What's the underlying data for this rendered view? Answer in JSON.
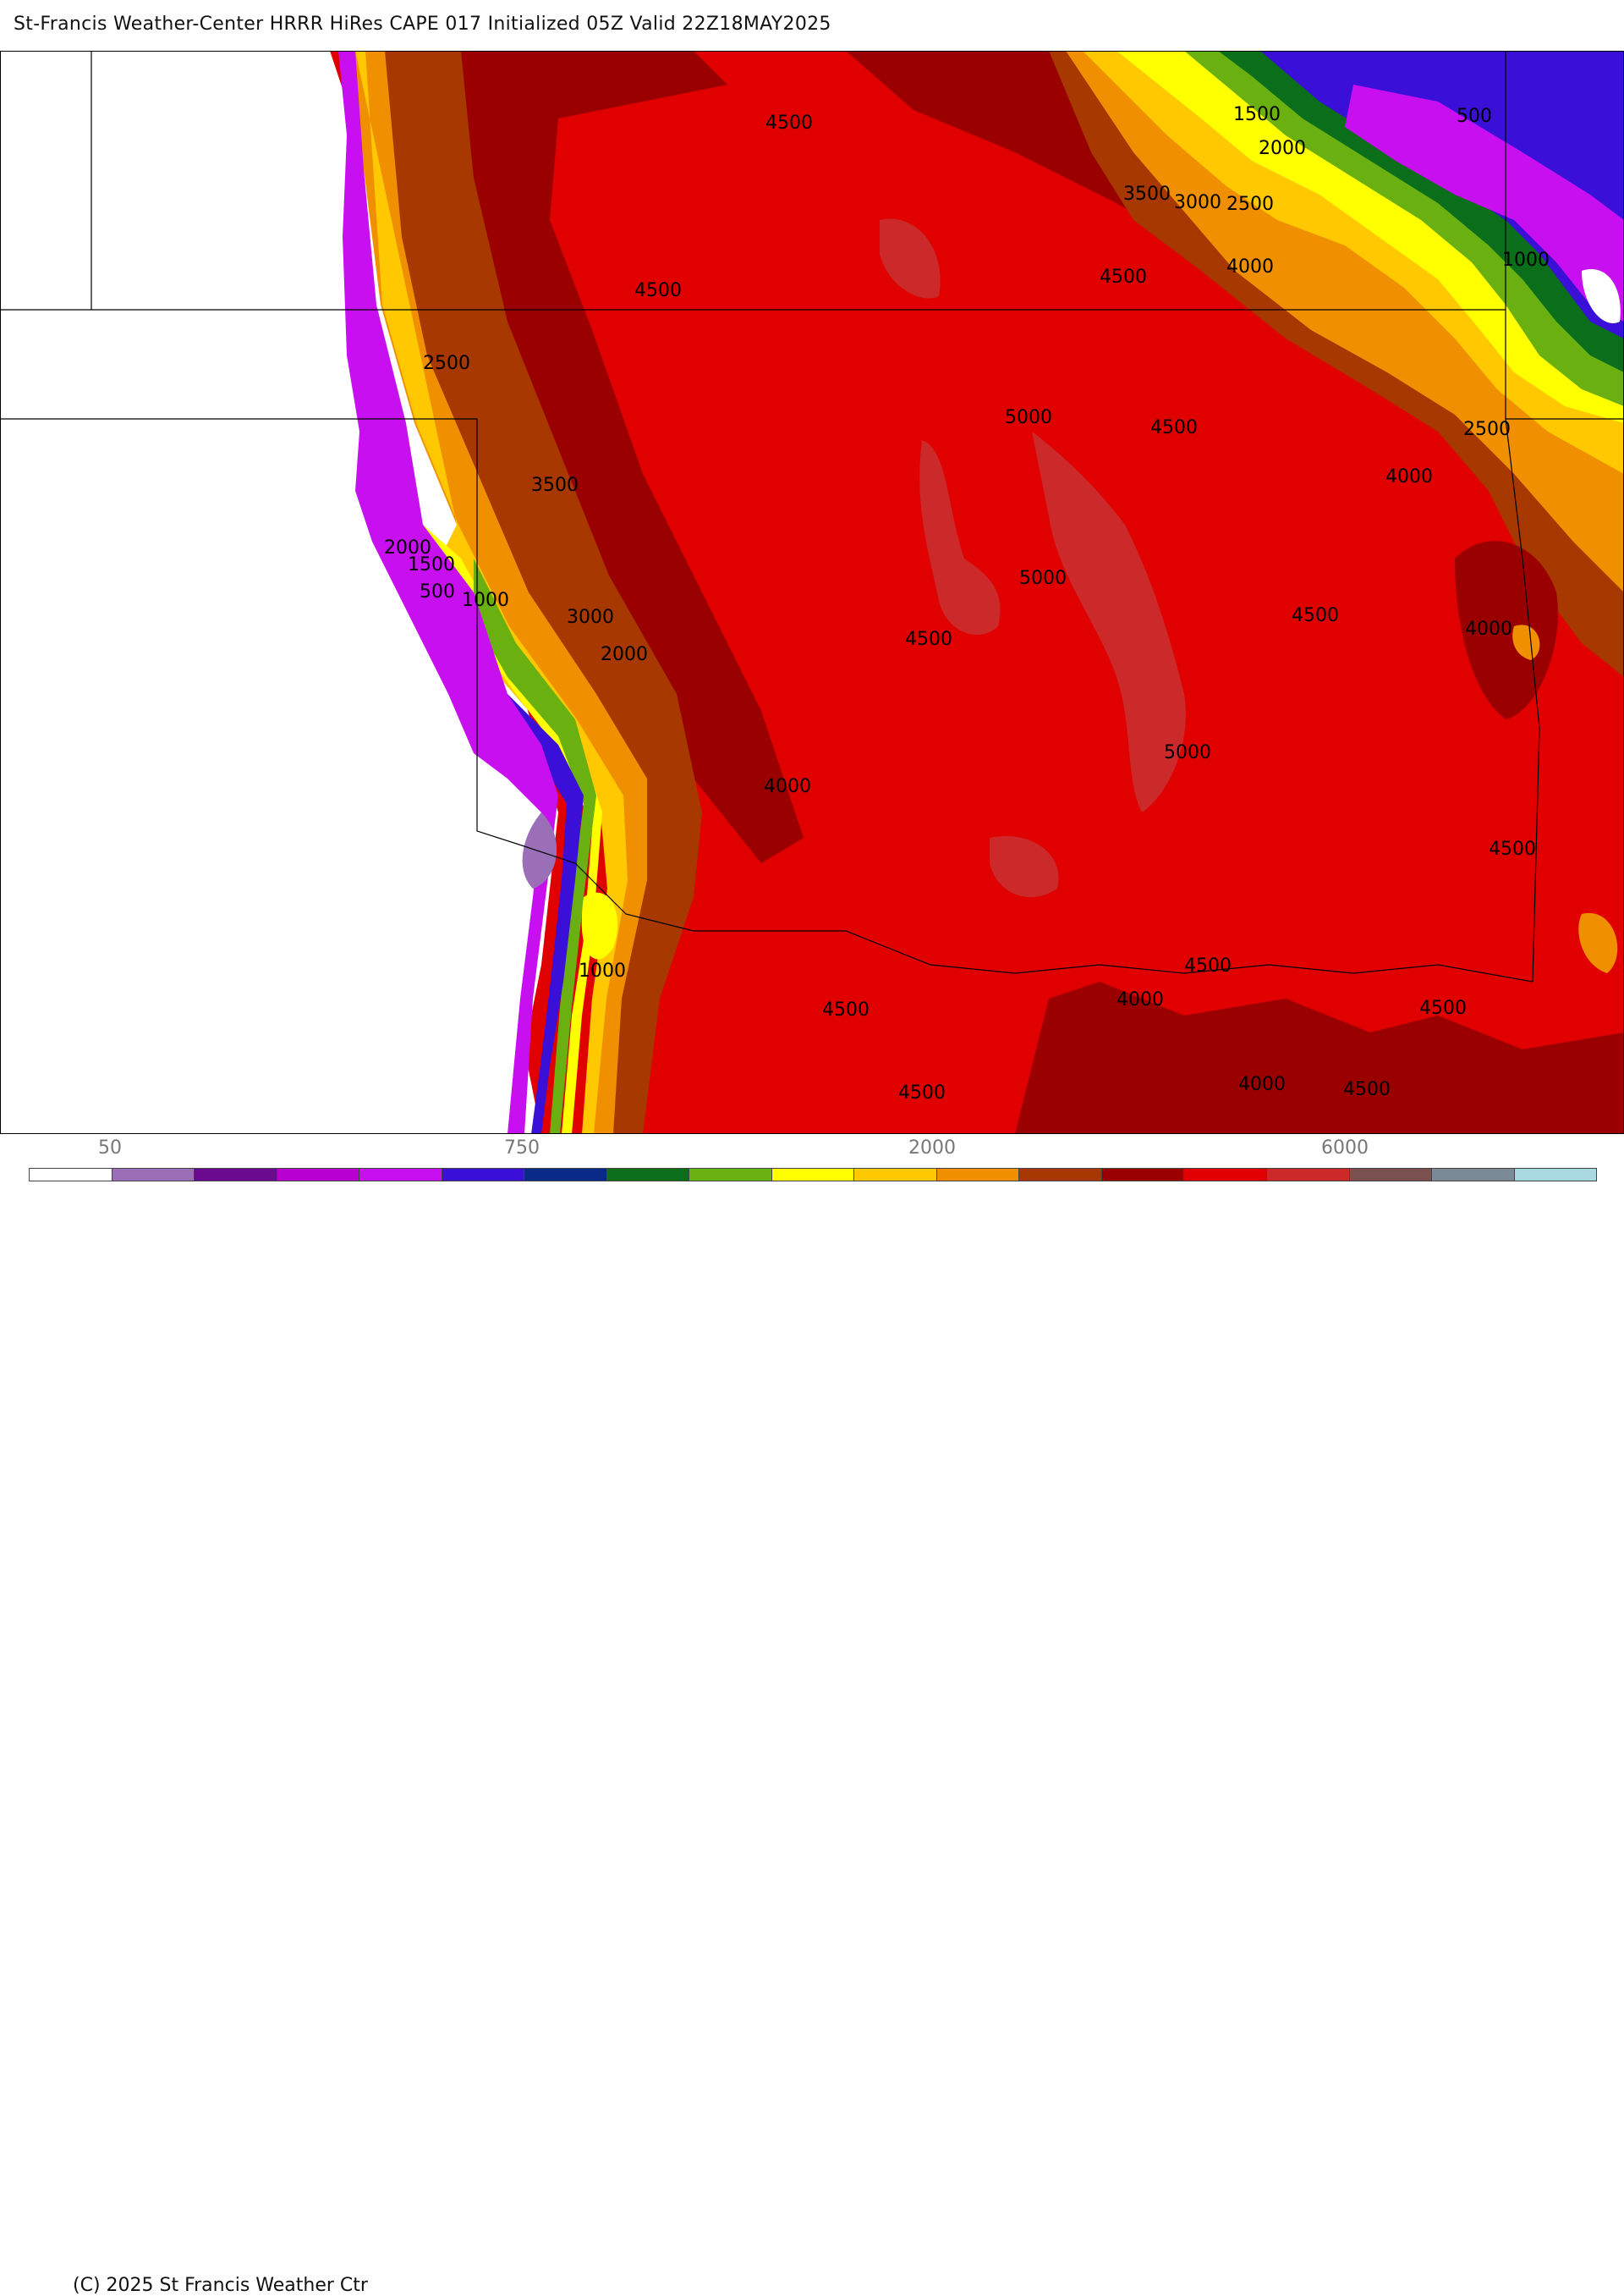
{
  "title": "St-Francis Weather-Center HRRR HiRes CAPE  017 Initialized  05Z Valid 22Z18MAY2025",
  "copyright": "(C) 2025 St Francis Weather Ctr",
  "colorbar": {
    "tick_labels": [
      "50",
      "750",
      "2000",
      "6000"
    ],
    "colors": [
      "#ffffff",
      "#9b6fb8",
      "#6a0a8e",
      "#b800d0",
      "#c80ff0",
      "#3a10d8",
      "#0a2a8a",
      "#0a6e1a",
      "#6ab010",
      "#ffff00",
      "#ffc800",
      "#f09000",
      "#a63800",
      "#9a0000",
      "#e00000",
      "#cc2a2a",
      "#7a5050",
      "#7a8a96",
      "#a8d8e0"
    ]
  },
  "contour_labels": {
    "l1": "4500",
    "l2": "4500",
    "l3": "1500",
    "l4": "500",
    "l5": "2000",
    "l6": "3500",
    "l7": "3000",
    "l8": "2500",
    "l9": "4000",
    "l10": "4500",
    "l11": "1000",
    "l12": "2500",
    "l13": "5000",
    "l14": "4500",
    "l15": "2500",
    "l16": "4000",
    "l17": "3500",
    "l18": "2000",
    "l19": "1500",
    "l20": "500",
    "l21": "1000",
    "l22": "3000",
    "l23": "2000",
    "l24": "5000",
    "l25": "4500",
    "l26": "4500",
    "l27": "4000",
    "l28": "5000",
    "l29": "4000",
    "l30": "4500",
    "l31": "1000",
    "l32": "4500",
    "l33": "4500",
    "l34": "4000",
    "l35": "4500",
    "l36": "4500",
    "l37": "4000",
    "l38": "4500"
  }
}
